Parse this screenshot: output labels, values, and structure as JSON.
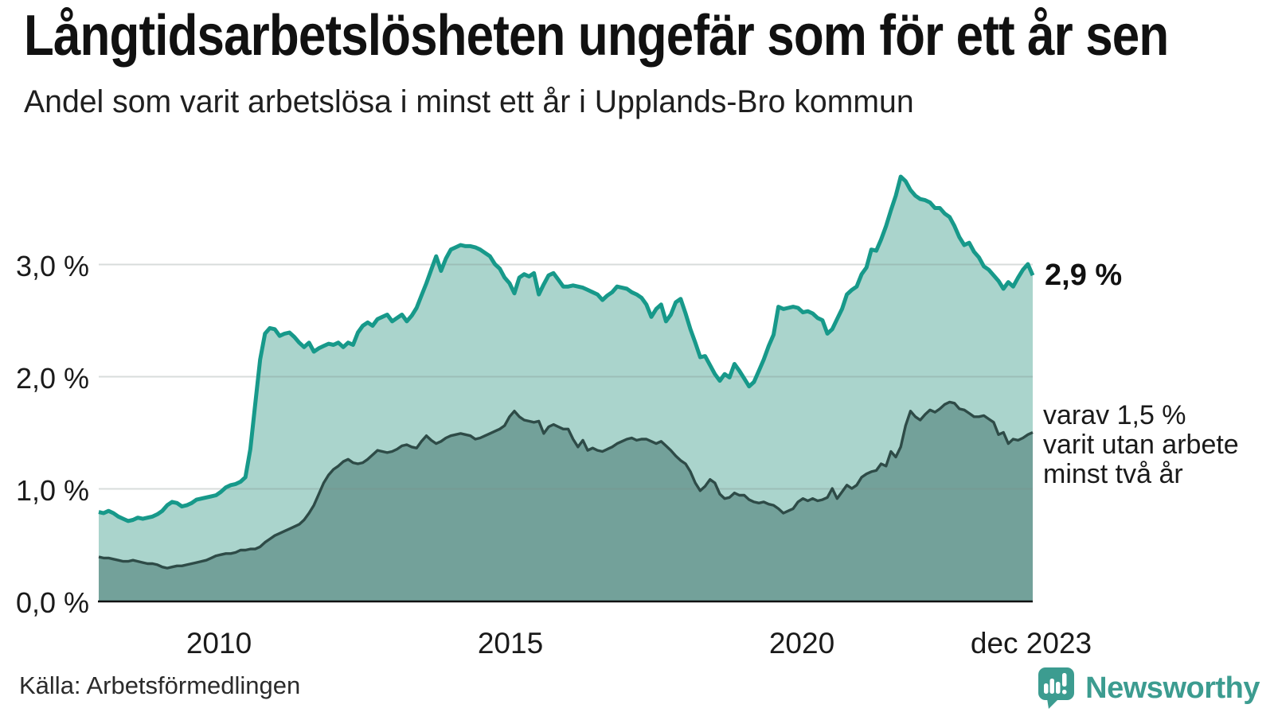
{
  "title": "Långtidsarbetslösheten ungefär som för ett år sen",
  "subtitle": "Andel som varit arbetslösa i minst ett år i Upplands-Bro kommun",
  "annotations": {
    "last_value_label": "2,9 %",
    "secondary_lines": [
      "varav 1,5 %",
      "varit utan arbete",
      "minst två år"
    ]
  },
  "source": "Källa: Arbetsförmedlingen",
  "branding": {
    "logo_text": "Newsworthy",
    "logo_color": "#3c9c90"
  },
  "colors": {
    "line_primary": "#17998a",
    "fill_primary": "#aad4cc",
    "line_secondary": "#2e4b47",
    "fill_secondary": "#73a19a",
    "gridline": "rgba(125,138,136,0.30)",
    "axis": "#111111",
    "text": "#1a1a1a"
  },
  "chart_data": {
    "type": "area",
    "title": "Långtidsarbetslösheten ungefär som för ett år sen",
    "subtitle": "Andel som varit arbetslösa i minst ett år i Upplands-Bro kommun",
    "x_start": "2008-01",
    "x_end": "2023-12",
    "frequency": "monthly",
    "x_tick_labels": [
      "2010",
      "2015",
      "2020",
      "dec 2023"
    ],
    "y_tick_labels": [
      "3,0 %",
      "2,0 %",
      "1,0 %",
      "0,0 %"
    ],
    "y_tick_values": [
      3.0,
      2.0,
      1.0,
      0.0
    ],
    "ylim": [
      0,
      4.0
    ],
    "grid": true,
    "unit": "%",
    "last_values": {
      "minst_ett_ar": 2.9,
      "minst_tva_ar": 1.5
    },
    "series": [
      {
        "name": "Andel arbetslösa minst ett år",
        "values": [
          0.79,
          0.78,
          0.8,
          0.78,
          0.75,
          0.73,
          0.71,
          0.72,
          0.74,
          0.73,
          0.74,
          0.75,
          0.77,
          0.8,
          0.85,
          0.88,
          0.87,
          0.84,
          0.85,
          0.87,
          0.9,
          0.91,
          0.92,
          0.93,
          0.94,
          0.97,
          1.01,
          1.03,
          1.04,
          1.06,
          1.1,
          1.35,
          1.75,
          2.15,
          2.38,
          2.43,
          2.42,
          2.36,
          2.38,
          2.39,
          2.35,
          2.3,
          2.26,
          2.3,
          2.22,
          2.25,
          2.27,
          2.29,
          2.28,
          2.3,
          2.26,
          2.3,
          2.28,
          2.39,
          2.45,
          2.48,
          2.45,
          2.51,
          2.53,
          2.55,
          2.49,
          2.52,
          2.55,
          2.49,
          2.54,
          2.61,
          2.72,
          2.83,
          2.95,
          3.07,
          2.94,
          3.05,
          3.13,
          3.15,
          3.17,
          3.16,
          3.16,
          3.15,
          3.13,
          3.1,
          3.07,
          3.0,
          2.96,
          2.88,
          2.83,
          2.74,
          2.88,
          2.91,
          2.89,
          2.92,
          2.73,
          2.82,
          2.9,
          2.92,
          2.86,
          2.8,
          2.8,
          2.81,
          2.8,
          2.79,
          2.77,
          2.75,
          2.73,
          2.68,
          2.72,
          2.75,
          2.8,
          2.79,
          2.78,
          2.75,
          2.73,
          2.7,
          2.64,
          2.53,
          2.6,
          2.64,
          2.49,
          2.55,
          2.66,
          2.69,
          2.56,
          2.42,
          2.3,
          2.17,
          2.18,
          2.1,
          2.02,
          1.96,
          2.02,
          1.99,
          2.11,
          2.05,
          1.98,
          1.91,
          1.95,
          2.05,
          2.15,
          2.27,
          2.37,
          2.62,
          2.6,
          2.61,
          2.62,
          2.61,
          2.57,
          2.58,
          2.56,
          2.52,
          2.5,
          2.38,
          2.42,
          2.51,
          2.6,
          2.73,
          2.77,
          2.8,
          2.91,
          2.97,
          3.13,
          3.12,
          3.22,
          3.34,
          3.48,
          3.61,
          3.78,
          3.74,
          3.66,
          3.61,
          3.58,
          3.57,
          3.55,
          3.5,
          3.5,
          3.45,
          3.42,
          3.34,
          3.24,
          3.17,
          3.19,
          3.11,
          3.06,
          2.98,
          2.95,
          2.9,
          2.85,
          2.78,
          2.84,
          2.8,
          2.88,
          2.95,
          3.0,
          2.9
        ]
      },
      {
        "name": "Andel arbetslösa minst två år",
        "values": [
          0.39,
          0.38,
          0.38,
          0.37,
          0.36,
          0.35,
          0.35,
          0.36,
          0.35,
          0.34,
          0.33,
          0.33,
          0.32,
          0.3,
          0.29,
          0.3,
          0.31,
          0.31,
          0.32,
          0.33,
          0.34,
          0.35,
          0.36,
          0.38,
          0.4,
          0.41,
          0.42,
          0.42,
          0.43,
          0.45,
          0.45,
          0.46,
          0.46,
          0.48,
          0.52,
          0.55,
          0.58,
          0.6,
          0.62,
          0.64,
          0.66,
          0.68,
          0.72,
          0.78,
          0.85,
          0.95,
          1.05,
          1.12,
          1.17,
          1.2,
          1.24,
          1.26,
          1.23,
          1.22,
          1.23,
          1.26,
          1.3,
          1.34,
          1.33,
          1.32,
          1.33,
          1.35,
          1.38,
          1.39,
          1.37,
          1.36,
          1.42,
          1.47,
          1.43,
          1.4,
          1.42,
          1.45,
          1.47,
          1.48,
          1.49,
          1.48,
          1.47,
          1.44,
          1.45,
          1.47,
          1.49,
          1.51,
          1.53,
          1.56,
          1.64,
          1.69,
          1.64,
          1.61,
          1.6,
          1.59,
          1.6,
          1.49,
          1.55,
          1.57,
          1.55,
          1.53,
          1.53,
          1.44,
          1.37,
          1.43,
          1.34,
          1.36,
          1.34,
          1.33,
          1.35,
          1.37,
          1.4,
          1.42,
          1.44,
          1.45,
          1.43,
          1.44,
          1.44,
          1.42,
          1.4,
          1.42,
          1.38,
          1.34,
          1.29,
          1.25,
          1.22,
          1.15,
          1.05,
          0.98,
          1.02,
          1.08,
          1.05,
          0.95,
          0.91,
          0.92,
          0.96,
          0.94,
          0.94,
          0.9,
          0.88,
          0.87,
          0.88,
          0.86,
          0.85,
          0.82,
          0.78,
          0.8,
          0.82,
          0.88,
          0.91,
          0.89,
          0.91,
          0.89,
          0.9,
          0.92,
          1.0,
          0.91,
          0.97,
          1.03,
          1.0,
          1.03,
          1.1,
          1.13,
          1.15,
          1.16,
          1.22,
          1.2,
          1.33,
          1.28,
          1.37,
          1.56,
          1.69,
          1.64,
          1.61,
          1.66,
          1.7,
          1.68,
          1.71,
          1.75,
          1.77,
          1.76,
          1.71,
          1.7,
          1.67,
          1.64,
          1.64,
          1.65,
          1.62,
          1.59,
          1.48,
          1.5,
          1.4,
          1.44,
          1.43,
          1.45,
          1.48,
          1.5
        ]
      }
    ]
  }
}
